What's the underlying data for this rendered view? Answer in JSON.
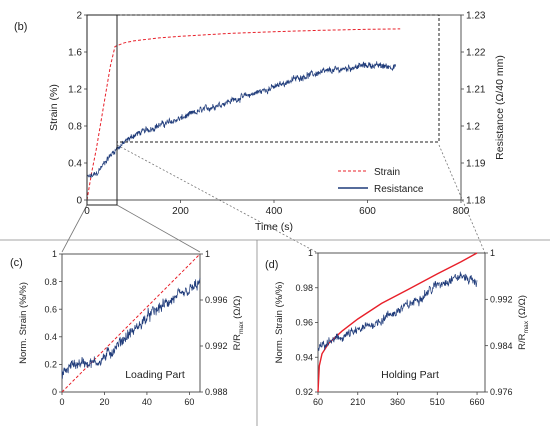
{
  "chart_data": [
    {
      "panel": "(b)",
      "type": "line",
      "xlabel": "Time (s)",
      "ylabel": "Strain (%)",
      "y2label": "Resistance (Ω/40 mm)",
      "xlim": [
        0,
        800
      ],
      "ylim": [
        0,
        2
      ],
      "y2lim": [
        1.18,
        1.23
      ],
      "xticks": [
        "0",
        "200",
        "400",
        "600",
        "800"
      ],
      "yticks": [
        "0",
        "0.4",
        "0.8",
        "1.2",
        "1.6",
        "2"
      ],
      "y2ticks": [
        "1.18",
        "1.19",
        "1.2",
        "1.21",
        "1.22",
        "1.23"
      ],
      "legend": {
        "position": "bottom-right",
        "entries": [
          "Strain",
          "Resistance"
        ]
      },
      "colors": {
        "strain": "#e8202a",
        "resistance": "#1f3b7a"
      },
      "series": [
        {
          "name": "Strain",
          "axis": "left",
          "style": "dashed",
          "x": [
            0,
            10,
            20,
            30,
            40,
            50,
            60,
            80,
            100,
            150,
            200,
            300,
            400,
            500,
            600,
            670
          ],
          "values": [
            0,
            0.3,
            0.55,
            0.85,
            1.15,
            1.45,
            1.66,
            1.7,
            1.72,
            1.75,
            1.77,
            1.8,
            1.82,
            1.835,
            1.845,
            1.85
          ]
        },
        {
          "name": "Resistance",
          "axis": "right",
          "style": "noisy",
          "x": [
            0,
            20,
            40,
            60,
            100,
            150,
            200,
            250,
            300,
            350,
            400,
            450,
            500,
            550,
            600,
            660
          ],
          "values": [
            1.186,
            1.187,
            1.1905,
            1.1935,
            1.1975,
            1.2,
            1.202,
            1.2045,
            1.2065,
            1.2085,
            1.2105,
            1.213,
            1.2145,
            1.2155,
            1.2165,
            1.216
          ]
        }
      ]
    },
    {
      "panel": "(c)",
      "type": "line",
      "annotation": "Loading Part",
      "ylabel": "Norm. Strain (%/%)",
      "y2label": "R/R",
      "y2label_sub": "max",
      "y2label_tail": " (Ω/Ω)",
      "xlim": [
        0,
        65
      ],
      "ylim": [
        0,
        1
      ],
      "y2lim": [
        0.988,
        1
      ],
      "xticks": [
        "0",
        "20",
        "40",
        "60"
      ],
      "yticks": [
        "0",
        "0.2",
        "0.4",
        "0.6",
        "0.8",
        "1"
      ],
      "y2ticks": [
        "0.988",
        "0.992",
        "0.996",
        "1"
      ],
      "series": [
        {
          "name": "Strain",
          "axis": "left",
          "style": "dashed",
          "x": [
            0,
            65
          ],
          "values": [
            0,
            1
          ]
        },
        {
          "name": "Resistance",
          "axis": "right",
          "style": "noisy",
          "x": [
            0,
            5,
            10,
            15,
            20,
            25,
            30,
            35,
            40,
            45,
            50,
            55,
            60,
            65
          ],
          "values": [
            0.9895,
            0.9904,
            0.9906,
            0.9905,
            0.991,
            0.9918,
            0.9928,
            0.9935,
            0.9945,
            0.9952,
            0.9958,
            0.9963,
            0.9968,
            0.9975
          ]
        }
      ]
    },
    {
      "panel": "(d)",
      "type": "line",
      "annotation": "Holding Part",
      "ylabel": "Norm. Strain (%/%)",
      "y2label": "R/R",
      "y2label_sub": "max",
      "y2label_tail": " (Ω/Ω)",
      "xlim": [
        60,
        690
      ],
      "ylim": [
        0.92,
        1
      ],
      "y2lim": [
        0.976,
        1
      ],
      "xticks": [
        "60",
        "210",
        "360",
        "510",
        "660"
      ],
      "yticks": [
        "0.92",
        "0.94",
        "0.96",
        "0.98",
        "1"
      ],
      "y2ticks": [
        "0.976",
        "0.984",
        "0.992",
        "1"
      ],
      "series": [
        {
          "name": "Strain",
          "axis": "left",
          "style": "solid",
          "x": [
            60,
            65,
            75,
            100,
            150,
            210,
            300,
            400,
            510,
            600,
            660
          ],
          "values": [
            0.92,
            0.935,
            0.942,
            0.948,
            0.955,
            0.962,
            0.971,
            0.979,
            0.988,
            0.995,
            1.0
          ]
        },
        {
          "name": "Resistance",
          "axis": "right",
          "style": "noisy",
          "x": [
            60,
            100,
            150,
            210,
            300,
            360,
            420,
            480,
            510,
            560,
            600,
            630,
            660
          ],
          "values": [
            0.9835,
            0.9845,
            0.9855,
            0.9865,
            0.9885,
            0.99,
            0.9915,
            0.9935,
            0.9945,
            0.9955,
            0.996,
            0.9955,
            0.995
          ]
        }
      ]
    }
  ]
}
